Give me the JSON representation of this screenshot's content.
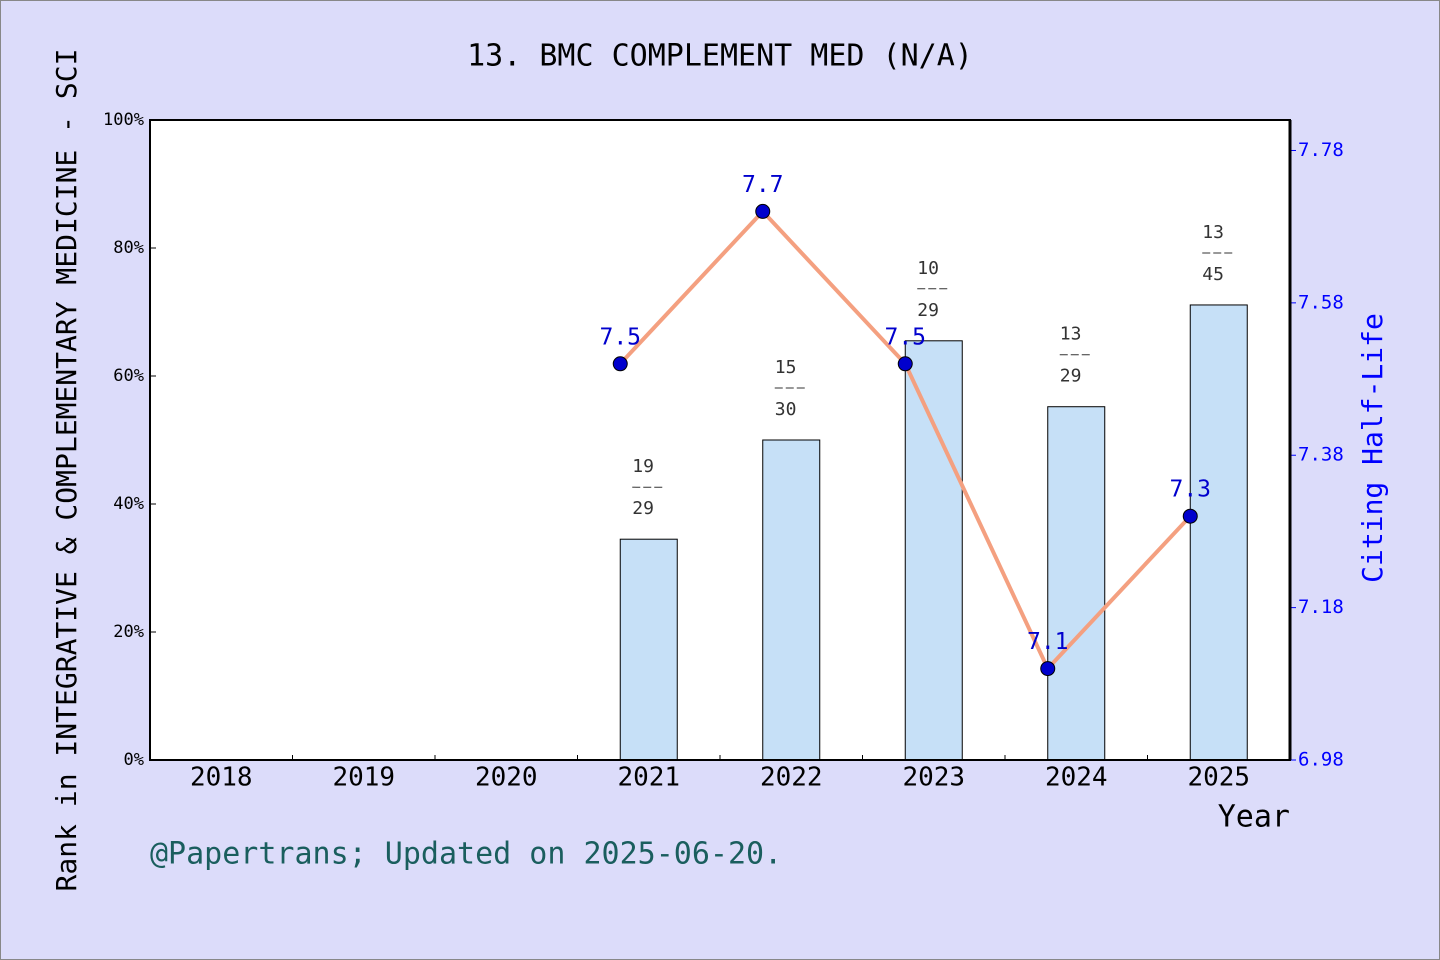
{
  "chart_data": {
    "type": "bar",
    "title": "13. BMC COMPLEMENT MED (N/A)",
    "x_label": "Year",
    "y_label": "Rank in INTEGRATIVE & COMPLEMENTARY MEDICINE - SCI",
    "y2_label": "Citing Half-Life",
    "footer": "@Papertrans; Updated on 2025-06-20.",
    "categories": [
      "2018",
      "2019",
      "2020",
      "2021",
      "2022",
      "2023",
      "2024",
      "2025"
    ],
    "series": [
      {
        "type": "bar",
        "color": "#c6e0f7",
        "values": [
          null,
          null,
          null,
          34.5,
          50,
          65.5,
          55.2,
          71.1
        ],
        "ranks": [
          null,
          null,
          null,
          19,
          15,
          10,
          13,
          13
        ],
        "totals": [
          null,
          null,
          null,
          29,
          30,
          29,
          29,
          45
        ]
      },
      {
        "type": "line",
        "axis": "y2",
        "color": "#f4a080",
        "marker_color": "#0000cd",
        "label_color": "#0000cd",
        "values": [
          null,
          null,
          null,
          7.5,
          7.7,
          7.5,
          7.1,
          7.3
        ]
      }
    ],
    "ylim": [
      0,
      100
    ],
    "yticks": [
      {
        "value": 0,
        "label": "0%"
      },
      {
        "value": 20,
        "label": "20%"
      },
      {
        "value": 40,
        "label": "40%"
      },
      {
        "value": 60,
        "label": "60%"
      },
      {
        "value": 80,
        "label": "80%"
      },
      {
        "value": 100,
        "label": "100%"
      }
    ],
    "y2lim": [
      6.98,
      7.82
    ],
    "y2ticks": [
      6.98,
      7.18,
      7.38,
      7.58,
      7.78
    ]
  }
}
